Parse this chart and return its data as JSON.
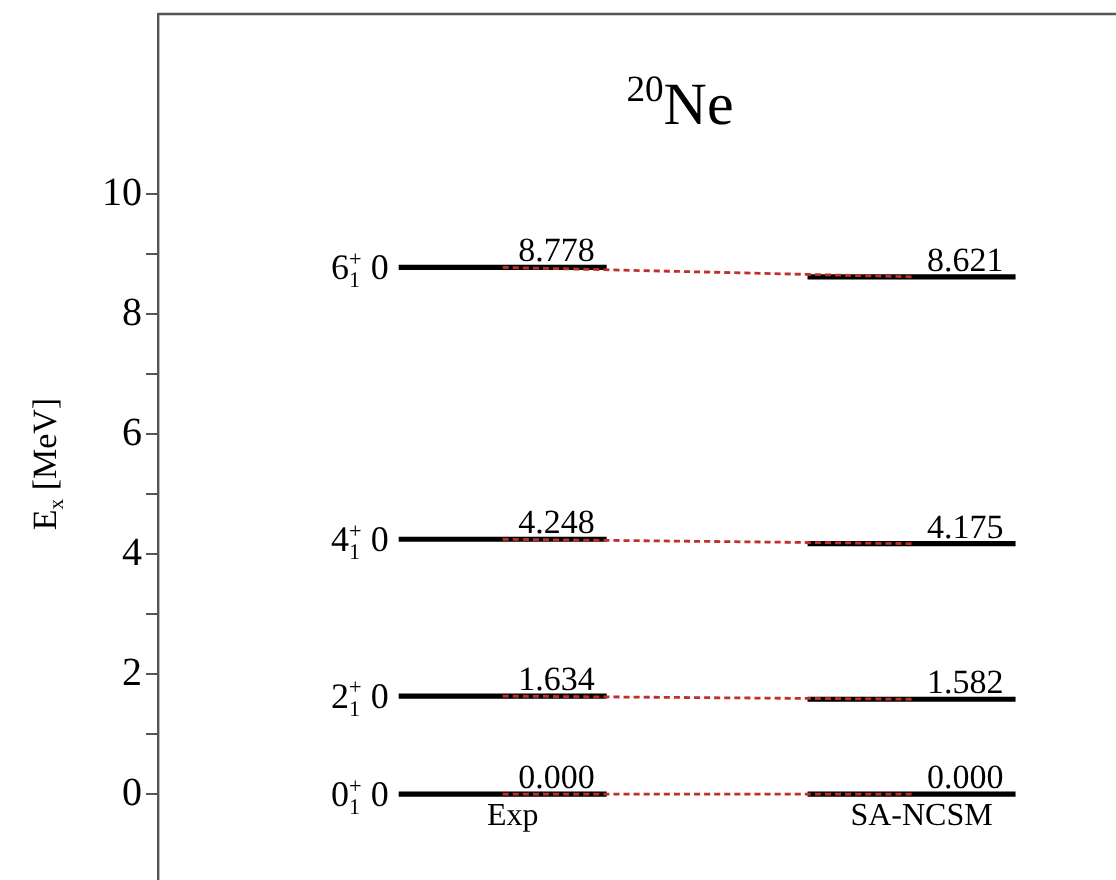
{
  "chart_data": {
    "type": "line",
    "title": "$^{20}$Ne",
    "ylabel": "E$_{x}$ [MeV]",
    "categories": [
      "Exp",
      "SA-NCSM"
    ],
    "ylim": [
      -1.43,
      13
    ],
    "yticks": [
      0,
      {
        "value": 1,
        "label": null
      },
      2,
      {
        "value": 3,
        "label": null
      },
      4,
      {
        "value": 5,
        "label": null
      },
      6,
      {
        "value": 7,
        "label": null
      },
      8,
      {
        "value": 9,
        "label": null
      },
      10
    ],
    "line_style": "dashed",
    "series": [
      {
        "name": "6$_{1}$$^{+}$ 0",
        "color": "#c0302a",
        "values": [
          8.778,
          8.621
        ],
        "value_labels": [
          "8.778",
          "8.621"
        ]
      },
      {
        "name": "4$_{1}$$^{+}$ 0",
        "color": "#c0302a",
        "values": [
          4.248,
          4.175
        ],
        "value_labels": [
          "4.248",
          "4.175"
        ]
      },
      {
        "name": "2$_{1}$$^{+}$ 0",
        "color": "#c0302a",
        "values": [
          1.634,
          1.582
        ],
        "value_labels": [
          "1.634",
          "1.582"
        ]
      },
      {
        "name": "0$_{1}$$^{+}$ 0",
        "color": "#c0302a",
        "values": [
          0,
          0
        ],
        "value_labels": [
          "0.000",
          "0.000"
        ]
      }
    ]
  }
}
